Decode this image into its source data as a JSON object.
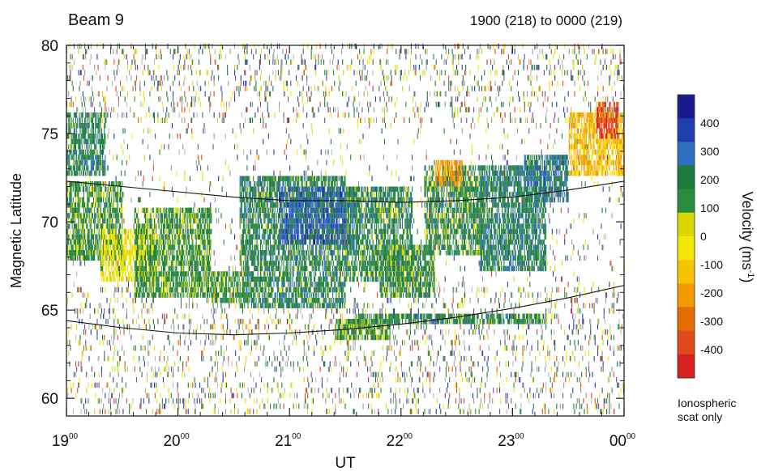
{
  "chart_data": {
    "type": "heatmap",
    "title": "Beam 9",
    "subtitle": "1900 (218) to 0000 (219)",
    "xlabel": "UT",
    "ylabel": "Magnetic Latitude",
    "xlim": [
      19,
      24
    ],
    "ylim": [
      59,
      80
    ],
    "x_ticks": [
      {
        "value": 19,
        "hour": "19",
        "min": "00"
      },
      {
        "value": 20,
        "hour": "20",
        "min": "00"
      },
      {
        "value": 21,
        "hour": "21",
        "min": "00"
      },
      {
        "value": 22,
        "hour": "22",
        "min": "00"
      },
      {
        "value": 23,
        "hour": "23",
        "min": "00"
      },
      {
        "value": 24,
        "hour": "00",
        "min": "00"
      }
    ],
    "y_ticks": [
      60,
      65,
      70,
      75,
      80
    ],
    "colorbar": {
      "title": "Velocity (ms",
      "title_exp": "-1",
      "title_close": ")",
      "range": [
        -500,
        500
      ],
      "tick_values": [
        400,
        300,
        200,
        100,
        0,
        -100,
        -200,
        -300,
        -400
      ],
      "tick_labels": [
        "400",
        "300",
        "200",
        "100",
        "0",
        "-100",
        "-200",
        "-300",
        "-400"
      ],
      "colors": [
        "#1a1a8c",
        "#1f3fb0",
        "#2e6fc0",
        "#1c7a3a",
        "#2a8c3c",
        "#d8d800",
        "#f2e800",
        "#f6c400",
        "#f29a00",
        "#e66b00",
        "#e04a1c",
        "#d82020"
      ],
      "note_lines": [
        "Ionospheric",
        "scat only"
      ]
    },
    "boundary_curves": [
      {
        "x": [
          19.0,
          19.5,
          20.0,
          20.5,
          21.0,
          21.5,
          22.0,
          22.5,
          23.0,
          23.5,
          24.0
        ],
        "y": [
          72.3,
          72.0,
          71.7,
          71.4,
          71.2,
          71.2,
          71.1,
          71.2,
          71.4,
          71.8,
          72.3
        ]
      },
      {
        "x": [
          19.0,
          19.5,
          20.0,
          20.5,
          21.0,
          21.5,
          22.0,
          22.5,
          23.0,
          23.5,
          24.0
        ],
        "y": [
          64.4,
          64.0,
          63.7,
          63.6,
          63.7,
          63.9,
          64.2,
          64.6,
          65.1,
          65.7,
          66.4
        ]
      }
    ],
    "regions": [
      {
        "x": [
          19.0,
          19.35
        ],
        "y": [
          72.5,
          76.0
        ],
        "v": 180
      },
      {
        "x": [
          19.0,
          19.5
        ],
        "y": [
          67.5,
          72.0
        ],
        "v": 150
      },
      {
        "x": [
          19.3,
          19.8
        ],
        "y": [
          66.5,
          69.5
        ],
        "v": 0
      },
      {
        "x": [
          19.6,
          20.3
        ],
        "y": [
          65.5,
          70.5
        ],
        "v": 140
      },
      {
        "x": [
          20.3,
          20.55
        ],
        "y": [
          65.2,
          67.0
        ],
        "v": 150
      },
      {
        "x": [
          20.55,
          21.5
        ],
        "y": [
          65.0,
          72.5
        ],
        "v": 180
      },
      {
        "x": [
          20.9,
          21.6
        ],
        "y": [
          68.5,
          71.8
        ],
        "v": 320
      },
      {
        "x": [
          21.5,
          22.1
        ],
        "y": [
          66.5,
          71.8
        ],
        "v": 170
      },
      {
        "x": [
          21.8,
          22.3
        ],
        "y": [
          65.5,
          68.5
        ],
        "v": 150
      },
      {
        "x": [
          22.2,
          22.75
        ],
        "y": [
          68.0,
          73.0
        ],
        "v": 160
      },
      {
        "x": [
          22.3,
          22.55
        ],
        "y": [
          71.8,
          73.2
        ],
        "v": -220
      },
      {
        "x": [
          22.7,
          23.3
        ],
        "y": [
          67.0,
          73.0
        ],
        "v": 200
      },
      {
        "x": [
          23.1,
          23.5
        ],
        "y": [
          71.0,
          73.5
        ],
        "v": 250
      },
      {
        "x": [
          23.5,
          24.0
        ],
        "y": [
          72.5,
          76.0
        ],
        "v": -150
      },
      {
        "x": [
          23.75,
          23.95
        ],
        "y": [
          74.5,
          76.5
        ],
        "v": -380
      },
      {
        "x": [
          21.6,
          23.3
        ],
        "y": [
          64.1,
          64.6
        ],
        "v": 170
      },
      {
        "x": [
          21.4,
          21.9
        ],
        "y": [
          63.2,
          64.2
        ],
        "v": 140
      }
    ]
  }
}
